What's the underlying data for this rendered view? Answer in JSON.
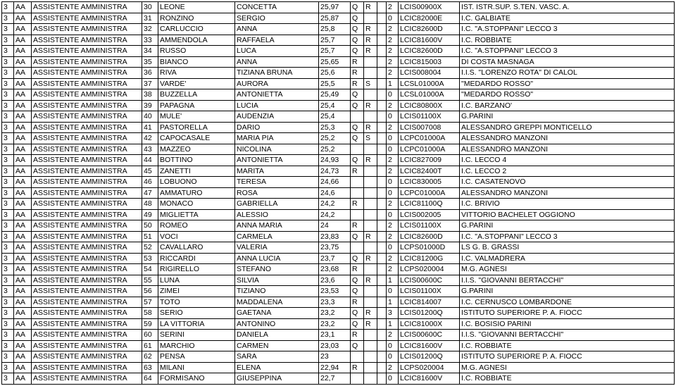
{
  "rows": [
    [
      "3",
      "AA",
      "ASSISTENTE AMMINISTRA",
      "30",
      "LEONE",
      "CONCETTA",
      "25,97",
      "Q",
      "R",
      "",
      "2",
      "LCIS00900X",
      "IST. ISTR.SUP. S.TEN. VASC. A."
    ],
    [
      "3",
      "AA",
      "ASSISTENTE AMMINISTRA",
      "31",
      "RONZINO",
      "SERGIO",
      "25,87",
      "Q",
      "",
      "",
      "0",
      "LCIC82000E",
      "I.C. GALBIATE"
    ],
    [
      "3",
      "AA",
      "ASSISTENTE AMMINISTRA",
      "32",
      "CARLUCCIO",
      "ANNA",
      "25,8",
      "Q",
      "R",
      "",
      "2",
      "LCIC82600D",
      "I.C. \"A.STOPPANI\" LECCO 3"
    ],
    [
      "3",
      "AA",
      "ASSISTENTE AMMINISTRA",
      "33",
      "AMMENDOLA",
      "RAFFAELA",
      "25,7",
      "Q",
      "R",
      "",
      "2",
      "LCIC81600V",
      "I.C. ROBBIATE"
    ],
    [
      "3",
      "AA",
      "ASSISTENTE AMMINISTRA",
      "34",
      "RUSSO",
      "LUCA",
      "25,7",
      "Q",
      "R",
      "",
      "2",
      "LCIC82600D",
      "I.C. \"A.STOPPANI\" LECCO 3"
    ],
    [
      "3",
      "AA",
      "ASSISTENTE AMMINISTRA",
      "35",
      "BIANCO",
      "ANNA",
      "25,65",
      "R",
      "",
      "",
      "2",
      "LCIC815003",
      "DI COSTA MASNAGA"
    ],
    [
      "3",
      "AA",
      "ASSISTENTE AMMINISTRA",
      "36",
      "RIVA",
      "TIZIANA BRUNA",
      "25,6",
      "R",
      "",
      "",
      "2",
      "LCIS008004",
      "I.I.S. \"LORENZO ROTA\" DI CALOL"
    ],
    [
      "3",
      "AA",
      "ASSISTENTE AMMINISTRA",
      "37",
      "VARDE'",
      "AURORA",
      "25,5",
      "R",
      "S",
      "",
      "1",
      "LCSL01000A",
      "\"MEDARDO ROSSO\""
    ],
    [
      "3",
      "AA",
      "ASSISTENTE AMMINISTRA",
      "38",
      "BUZZELLA",
      "ANTONIETTA",
      "25,49",
      "Q",
      "",
      "",
      "0",
      "LCSL01000A",
      "\"MEDARDO ROSSO\""
    ],
    [
      "3",
      "AA",
      "ASSISTENTE AMMINISTRA",
      "39",
      "PAPAGNA",
      "LUCIA",
      "25,4",
      "Q",
      "R",
      "",
      "2",
      "LCIC80800X",
      "I.C. BARZANO'"
    ],
    [
      "3",
      "AA",
      "ASSISTENTE AMMINISTRA",
      "40",
      "MULE'",
      "AUDENZIA",
      "25,4",
      "",
      "",
      "",
      "0",
      "LCIS01100X",
      "G.PARINI"
    ],
    [
      "3",
      "AA",
      "ASSISTENTE AMMINISTRA",
      "41",
      "PASTORELLA",
      "DARIO",
      "25,3",
      "Q",
      "R",
      "",
      "2",
      "LCIS007008",
      "ALESSANDRO GREPPI MONTICELLO"
    ],
    [
      "3",
      "AA",
      "ASSISTENTE AMMINISTRA",
      "42",
      "CAPOCASALE",
      "MARIA PIA",
      "25,2",
      "Q",
      "S",
      "",
      "0",
      "LCPC01000A",
      "ALESSANDRO MANZONI"
    ],
    [
      "3",
      "AA",
      "ASSISTENTE AMMINISTRA",
      "43",
      "MAZZEO",
      "NICOLINA",
      "25,2",
      "",
      "",
      "",
      "0",
      "LCPC01000A",
      "ALESSANDRO MANZONI"
    ],
    [
      "3",
      "AA",
      "ASSISTENTE AMMINISTRA",
      "44",
      "BOTTINO",
      "ANTONIETTA",
      "24,93",
      "Q",
      "R",
      "",
      "2",
      "LCIC827009",
      "I.C. LECCO 4"
    ],
    [
      "3",
      "AA",
      "ASSISTENTE AMMINISTRA",
      "45",
      "ZANETTI",
      "MARITA",
      "24,73",
      "R",
      "",
      "",
      "2",
      "LCIC82400T",
      "I.C. LECCO 2"
    ],
    [
      "3",
      "AA",
      "ASSISTENTE AMMINISTRA",
      "46",
      "LOBUONO",
      "TERESA",
      "24,66",
      "",
      "",
      "",
      "0",
      "LCIC830005",
      "I.C. CASATENOVO"
    ],
    [
      "3",
      "AA",
      "ASSISTENTE AMMINISTRA",
      "47",
      "AMMATURO",
      "ROSA",
      "24,6",
      "",
      "",
      "",
      "0",
      "LCPC01000A",
      "ALESSANDRO MANZONI"
    ],
    [
      "3",
      "AA",
      "ASSISTENTE AMMINISTRA",
      "48",
      "MONACO",
      "GABRIELLA",
      "24,2",
      "R",
      "",
      "",
      "2",
      "LCIC81100Q",
      "I.C.  BRIVIO"
    ],
    [
      "3",
      "AA",
      "ASSISTENTE AMMINISTRA",
      "49",
      "MIGLIETTA",
      "ALESSIO",
      "24,2",
      "",
      "",
      "",
      "0",
      "LCIS002005",
      "VITTORIO BACHELET  OGGIONO"
    ],
    [
      "3",
      "AA",
      "ASSISTENTE AMMINISTRA",
      "50",
      "ROMEO",
      "ANNA MARIA",
      "24",
      "R",
      "",
      "",
      "2",
      "LCIS01100X",
      "G.PARINI"
    ],
    [
      "3",
      "AA",
      "ASSISTENTE AMMINISTRA",
      "51",
      "VOCI",
      "CARMELA",
      "23,83",
      "Q",
      "R",
      "",
      "2",
      "LCIC82600D",
      "I.C. \"A.STOPPANI\" LECCO 3"
    ],
    [
      "3",
      "AA",
      "ASSISTENTE AMMINISTRA",
      "52",
      "CAVALLARO",
      "VALERIA",
      "23,75",
      "",
      "",
      "",
      "0",
      "LCPS01000D",
      "LS G. B. GRASSI"
    ],
    [
      "3",
      "AA",
      "ASSISTENTE AMMINISTRA",
      "53",
      "RICCARDI",
      "ANNA LUCIA",
      "23,7",
      "Q",
      "R",
      "",
      "2",
      "LCIC81200G",
      "I.C. VALMADRERA"
    ],
    [
      "3",
      "AA",
      "ASSISTENTE AMMINISTRA",
      "54",
      "RIGIRELLO",
      "STEFANO",
      "23,68",
      "R",
      "",
      "",
      "2",
      "LCPS020004",
      "M.G. AGNESI"
    ],
    [
      "3",
      "AA",
      "ASSISTENTE AMMINISTRA",
      "55",
      "LUNA",
      "SILVIA",
      "23,6",
      "Q",
      "R",
      "",
      "1",
      "LCIS00600C",
      "I.I.S.  \"GIOVANNI BERTACCHI\""
    ],
    [
      "3",
      "AA",
      "ASSISTENTE AMMINISTRA",
      "56",
      "ZIMEI",
      "TIZIANO",
      "23,53",
      "Q",
      "",
      "",
      "0",
      "LCIS01100X",
      "G.PARINI"
    ],
    [
      "3",
      "AA",
      "ASSISTENTE AMMINISTRA",
      "57",
      "TOTO",
      "MADDALENA",
      "23,3",
      "R",
      "",
      "",
      "1",
      "LCIC814007",
      "I.C. CERNUSCO LOMBARDONE"
    ],
    [
      "3",
      "AA",
      "ASSISTENTE AMMINISTRA",
      "58",
      "SERIO",
      "GAETANA",
      "23,2",
      "Q",
      "R",
      "",
      "3",
      "LCIS01200Q",
      "ISTITUTO SUPERIORE P. A. FIOCC"
    ],
    [
      "3",
      "AA",
      "ASSISTENTE AMMINISTRA",
      "59",
      "LA VITTORIA",
      "ANTONINO",
      "23,2",
      "Q",
      "R",
      "",
      "1",
      "LCIC81000X",
      "I.C. BOSISIO PARINI"
    ],
    [
      "3",
      "AA",
      "ASSISTENTE AMMINISTRA",
      "60",
      "SERINI",
      "DANIELA",
      "23,1",
      "R",
      "",
      "",
      "2",
      "LCIS00600C",
      "I.I.S.  \"GIOVANNI BERTACCHI\""
    ],
    [
      "3",
      "AA",
      "ASSISTENTE AMMINISTRA",
      "61",
      "MARCHIO",
      "CARMEN",
      "23,03",
      "Q",
      "",
      "",
      "0",
      "LCIC81600V",
      "I.C. ROBBIATE"
    ],
    [
      "3",
      "AA",
      "ASSISTENTE AMMINISTRA",
      "62",
      "PENSA",
      "SARA",
      "23",
      "",
      "",
      "",
      "0",
      "LCIS01200Q",
      "ISTITUTO SUPERIORE P. A. FIOCC"
    ],
    [
      "3",
      "AA",
      "ASSISTENTE AMMINISTRA",
      "63",
      "MILANI",
      "ELENA",
      "22,94",
      "R",
      "",
      "",
      "2",
      "LCPS020004",
      "M.G. AGNESI"
    ],
    [
      "3",
      "AA",
      "ASSISTENTE AMMINISTRA",
      "64",
      "FORMISANO",
      "GIUSEPPINA",
      "22,7",
      "",
      "",
      "",
      "0",
      "LCIC81600V",
      "I.C. ROBBIATE"
    ]
  ]
}
